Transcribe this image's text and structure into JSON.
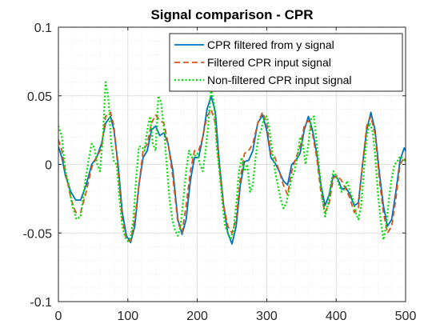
{
  "chart_data": {
    "type": "line",
    "title": "Signal comparison - CPR",
    "xlabel": "",
    "ylabel": "",
    "xlim": [
      0,
      500
    ],
    "ylim": [
      -0.1,
      0.1
    ],
    "xticks": [
      0,
      100,
      200,
      300,
      400,
      500
    ],
    "xtick_labels": [
      "0",
      "100",
      "200",
      "300",
      "400",
      "500"
    ],
    "yticks": [
      -0.1,
      -0.05,
      0,
      0.05,
      0.1
    ],
    "ytick_labels": [
      "-0.1",
      "-0.05",
      "0",
      "0.05",
      "0.1"
    ],
    "grid": true,
    "minor_grid": true,
    "legend_position": "top-right",
    "series": [
      {
        "name": "CPR filtered from y signal",
        "color": "#0072BD",
        "style": "solid",
        "x": [
          0,
          5,
          10,
          18,
          25,
          32,
          40,
          48,
          55,
          62,
          68,
          75,
          80,
          86,
          92,
          98,
          104,
          110,
          116,
          122,
          128,
          134,
          140,
          146,
          152,
          158,
          165,
          172,
          178,
          184,
          190,
          196,
          202,
          208,
          214,
          220,
          226,
          232,
          238,
          244,
          250,
          256,
          262,
          268,
          274,
          280,
          287,
          294,
          300,
          306,
          312,
          318,
          324,
          330,
          336,
          342,
          348,
          354,
          360,
          366,
          372,
          378,
          384,
          390,
          396,
          402,
          408,
          414,
          420,
          426,
          432,
          438,
          444,
          450,
          456,
          462,
          468,
          474,
          480,
          486,
          492,
          498,
          500
        ],
        "y": [
          0.013,
          0.005,
          -0.008,
          -0.02,
          -0.026,
          -0.026,
          -0.015,
          0.0,
          0.005,
          0.015,
          0.03,
          0.035,
          0.025,
          0.0,
          -0.035,
          -0.052,
          -0.057,
          -0.045,
          -0.015,
          0.005,
          0.01,
          0.025,
          0.028,
          0.021,
          0.023,
          0.015,
          -0.005,
          -0.04,
          -0.051,
          -0.04,
          -0.012,
          0.005,
          0.005,
          0.02,
          0.04,
          0.05,
          0.038,
          0.0,
          -0.03,
          -0.05,
          -0.058,
          -0.045,
          -0.015,
          0.002,
          0.003,
          0.01,
          0.03,
          0.036,
          0.025,
          0.005,
          0.001,
          -0.005,
          -0.012,
          -0.015,
          0.0,
          0.003,
          0.008,
          0.025,
          0.035,
          0.025,
          0.008,
          -0.015,
          -0.03,
          -0.022,
          -0.008,
          -0.01,
          -0.018,
          -0.017,
          -0.022,
          -0.03,
          -0.028,
          0.0,
          0.025,
          0.038,
          0.025,
          -0.005,
          -0.03,
          -0.045,
          -0.04,
          -0.02,
          0.003,
          0.012,
          0.01
        ]
      },
      {
        "name": "Filtered CPR input signal",
        "color": "#D95319",
        "style": "dashed",
        "x": [
          0,
          5,
          10,
          18,
          25,
          32,
          40,
          48,
          55,
          62,
          68,
          75,
          80,
          86,
          92,
          98,
          104,
          110,
          116,
          122,
          128,
          134,
          140,
          146,
          152,
          158,
          165,
          172,
          178,
          184,
          190,
          196,
          202,
          208,
          214,
          220,
          226,
          232,
          238,
          244,
          250,
          256,
          262,
          268,
          274,
          280,
          287,
          294,
          300,
          306,
          312,
          318,
          324,
          330,
          336,
          342,
          348,
          354,
          360,
          366,
          372,
          378,
          384,
          390,
          396,
          402,
          408,
          414,
          420,
          426,
          432,
          438,
          444,
          450,
          456,
          462,
          468,
          474,
          480,
          486,
          492,
          498,
          500
        ],
        "y": [
          0.018,
          0.01,
          -0.005,
          -0.025,
          -0.035,
          -0.035,
          -0.02,
          -0.002,
          0.005,
          0.012,
          0.035,
          0.038,
          0.028,
          -0.005,
          -0.04,
          -0.055,
          -0.056,
          -0.04,
          -0.015,
          0.01,
          0.015,
          0.03,
          0.036,
          0.032,
          0.03,
          0.015,
          -0.01,
          -0.042,
          -0.05,
          -0.03,
          -0.005,
          0.01,
          0.01,
          0.02,
          0.035,
          0.04,
          0.03,
          -0.005,
          -0.03,
          -0.045,
          -0.05,
          -0.04,
          -0.01,
          0.008,
          0.01,
          0.015,
          0.03,
          0.038,
          0.03,
          0.008,
          0.005,
          -0.005,
          -0.015,
          -0.022,
          -0.005,
          0.005,
          0.012,
          0.028,
          0.032,
          0.022,
          0.005,
          -0.02,
          -0.035,
          -0.028,
          -0.01,
          -0.008,
          -0.012,
          -0.018,
          -0.025,
          -0.035,
          -0.032,
          0.0,
          0.028,
          0.035,
          0.022,
          -0.01,
          -0.035,
          -0.05,
          -0.045,
          -0.025,
          0.0,
          0.005,
          0.002
        ]
      },
      {
        "name": "Non-filtered CPR input signal",
        "color": "#00DD00",
        "style": "dotted",
        "x": [
          0,
          5,
          10,
          15,
          20,
          26,
          32,
          38,
          44,
          48,
          52,
          56,
          60,
          64,
          68,
          72,
          76,
          80,
          84,
          88,
          92,
          96,
          100,
          104,
          108,
          112,
          116,
          120,
          124,
          128,
          132,
          136,
          140,
          144,
          148,
          152,
          156,
          160,
          164,
          168,
          172,
          176,
          180,
          184,
          188,
          192,
          196,
          200,
          204,
          208,
          212,
          216,
          220,
          224,
          228,
          232,
          236,
          240,
          244,
          248,
          252,
          256,
          260,
          264,
          268,
          272,
          276,
          280,
          284,
          288,
          292,
          296,
          300,
          304,
          308,
          312,
          316,
          320,
          324,
          328,
          332,
          336,
          340,
          344,
          348,
          352,
          356,
          360,
          364,
          368,
          372,
          376,
          380,
          384,
          388,
          392,
          396,
          400,
          404,
          408,
          412,
          416,
          420,
          424,
          428,
          432,
          436,
          440,
          444,
          448,
          452,
          456,
          460,
          464,
          468,
          472,
          476,
          480,
          484,
          488,
          492,
          496,
          500
        ],
        "y": [
          0.028,
          0.02,
          -0.005,
          -0.015,
          -0.03,
          -0.04,
          -0.038,
          -0.015,
          0.005,
          0.015,
          0.012,
          0.0,
          -0.005,
          0.02,
          0.06,
          0.048,
          0.015,
          0.002,
          0.0,
          -0.025,
          -0.045,
          -0.053,
          -0.056,
          -0.053,
          -0.04,
          -0.01,
          0.013,
          0.013,
          0.01,
          0.025,
          0.035,
          0.015,
          0.01,
          0.05,
          0.045,
          0.025,
          0.0,
          -0.025,
          -0.04,
          -0.048,
          -0.052,
          -0.045,
          -0.025,
          -0.005,
          0.01,
          0.005,
          0.006,
          0.008,
          0.0,
          -0.005,
          0.01,
          0.03,
          0.055,
          0.045,
          0.012,
          -0.005,
          -0.028,
          -0.045,
          -0.05,
          -0.055,
          -0.048,
          -0.03,
          -0.005,
          0.005,
          -0.005,
          0.0,
          -0.02,
          -0.015,
          0.005,
          0.02,
          0.025,
          0.034,
          0.035,
          0.025,
          0.01,
          -0.005,
          -0.015,
          -0.025,
          -0.032,
          -0.028,
          -0.02,
          -0.01,
          -0.005,
          0.005,
          0.02,
          0.015,
          0.0,
          0.015,
          0.033,
          0.035,
          0.015,
          -0.005,
          -0.025,
          -0.038,
          -0.03,
          -0.015,
          -0.005,
          -0.008,
          -0.015,
          -0.02,
          -0.018,
          -0.012,
          -0.02,
          -0.025,
          -0.035,
          -0.04,
          -0.03,
          -0.005,
          0.02,
          0.03,
          0.025,
          0.008,
          -0.02,
          -0.04,
          -0.055,
          -0.045,
          -0.025,
          -0.01,
          0.0,
          0.002,
          0.006,
          0.004,
          0.002
        ]
      }
    ]
  }
}
